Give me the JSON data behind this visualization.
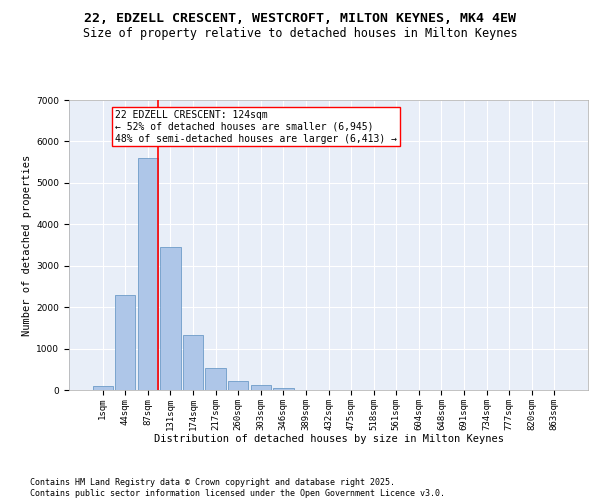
{
  "title_line1": "22, EDZELL CRESCENT, WESTCROFT, MILTON KEYNES, MK4 4EW",
  "title_line2": "Size of property relative to detached houses in Milton Keynes",
  "xlabel": "Distribution of detached houses by size in Milton Keynes",
  "ylabel": "Number of detached properties",
  "categories": [
    "1sqm",
    "44sqm",
    "87sqm",
    "131sqm",
    "174sqm",
    "217sqm",
    "260sqm",
    "303sqm",
    "346sqm",
    "389sqm",
    "432sqm",
    "475sqm",
    "518sqm",
    "561sqm",
    "604sqm",
    "648sqm",
    "691sqm",
    "734sqm",
    "777sqm",
    "820sqm",
    "863sqm"
  ],
  "values": [
    100,
    2300,
    5600,
    3450,
    1320,
    530,
    210,
    130,
    60,
    10,
    0,
    0,
    0,
    0,
    0,
    0,
    0,
    0,
    0,
    0,
    0
  ],
  "bar_color": "#aec6e8",
  "bar_edge_color": "#5a8fc0",
  "vline_color": "red",
  "annotation_text": "22 EDZELL CRESCENT: 124sqm\n← 52% of detached houses are smaller (6,945)\n48% of semi-detached houses are larger (6,413) →",
  "annotation_box_color": "white",
  "annotation_box_edge_color": "red",
  "ylim": [
    0,
    7000
  ],
  "yticks": [
    0,
    1000,
    2000,
    3000,
    4000,
    5000,
    6000,
    7000
  ],
  "background_color": "#e8eef8",
  "grid_color": "white",
  "footnote": "Contains HM Land Registry data © Crown copyright and database right 2025.\nContains public sector information licensed under the Open Government Licence v3.0.",
  "title_fontsize": 9.5,
  "subtitle_fontsize": 8.5,
  "axis_label_fontsize": 7.5,
  "tick_fontsize": 6.5,
  "annotation_fontsize": 7,
  "footnote_fontsize": 6
}
